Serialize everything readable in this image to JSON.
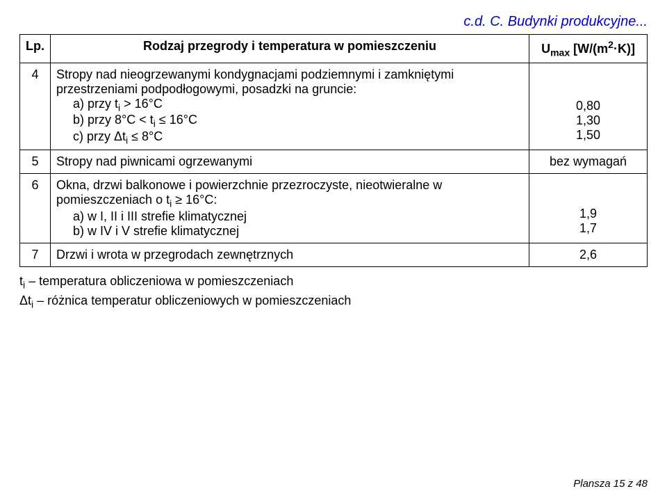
{
  "header": "c.d. C. Budynki produkcyjne...",
  "columns": {
    "lp": "Lp.",
    "desc": "Rodzaj przegrody i temperatura w pomieszczeniu",
    "val_html": "U<span class='sub'>max</span> [W/(m<span class='sup'>2</span>·K)]"
  },
  "rows": [
    {
      "lp": "4",
      "desc_html": "Stropy nad nieogrzewanymi kondygnacjami podziemnymi i zamkniętymi przestrzeniami podpodłogowymi, posadzki na gruncie:<br><span class='list-line'>a) przy t<span class='sub'>i</span> &gt; 16°C</span><br><span class='list-line'>b) przy 8°C &lt; t<span class='sub'>i</span> ≤ 16°C</span><br><span class='list-line'>c) przy Δt<span class='sub'>i</span> ≤ 8°C</span>",
      "val_html": "0,80<br>1,30<br>1,50",
      "val_class": "val-cell"
    },
    {
      "lp": "5",
      "desc_html": "Stropy nad piwnicami ogrzewanymi",
      "val_html": "bez wymagań",
      "val_class": "val-cell-mid"
    },
    {
      "lp": "6",
      "desc_html": "Okna, drzwi balkonowe i powierzchnie przezroczyste, nieotwieralne w pomieszczeniach o t<span class='sub'>i</span> ≥ 16°C:<br><span class='list-line'>a) w I, II i III strefie klimatycznej</span><br><span class='list-line'>b) w IV i V strefie klimatycznej</span>",
      "val_html": "1,9<br>1,7",
      "val_class": "val-cell"
    },
    {
      "lp": "7",
      "desc_html": "Drzwi i wrota w przegrodach zewnętrznych",
      "val_html": "2,6",
      "val_class": "val-cell-mid"
    }
  ],
  "notes": [
    "t<span class='sub'>i</span> – temperatura obliczeniowa w pomieszczeniach",
    "Δt<span class='sub'>i</span> – różnica temperatur obliczeniowych w pomieszczeniach"
  ],
  "footer": "Plansza 15 z 48"
}
